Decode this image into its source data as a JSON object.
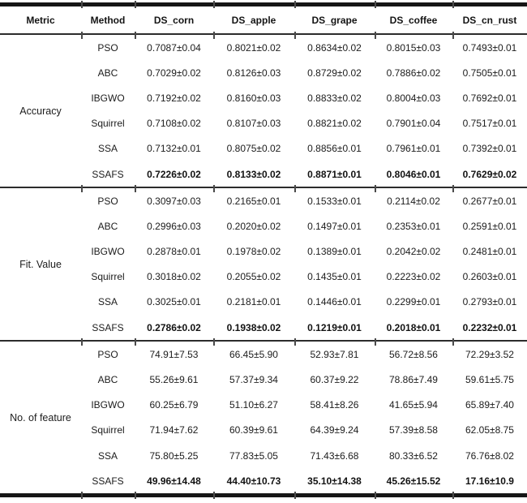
{
  "table": {
    "columns": [
      "Metric",
      "Method",
      "DS_corn",
      "DS_apple",
      "DS_grape",
      "DS_coffee",
      "DS_cn_rust"
    ],
    "sections": [
      {
        "metric": "Accuracy",
        "rows": [
          {
            "method": "PSO",
            "bold": false,
            "values": [
              "0.7087±0.04",
              "0.8021±0.02",
              "0.8634±0.02",
              "0.8015±0.03",
              "0.7493±0.01"
            ]
          },
          {
            "method": "ABC",
            "bold": false,
            "values": [
              "0.7029±0.02",
              "0.8126±0.03",
              "0.8729±0.02",
              "0.7886±0.02",
              "0.7505±0.01"
            ]
          },
          {
            "method": "IBGWO",
            "bold": false,
            "values": [
              "0.7192±0.02",
              "0.8160±0.03",
              "0.8833±0.02",
              "0.8004±0.03",
              "0.7692±0.01"
            ]
          },
          {
            "method": "Squirrel",
            "bold": false,
            "values": [
              "0.7108±0.02",
              "0.8107±0.03",
              "0.8821±0.02",
              "0.7901±0.04",
              "0.7517±0.01"
            ]
          },
          {
            "method": "SSA",
            "bold": false,
            "values": [
              "0.7132±0.01",
              "0.8075±0.02",
              "0.8856±0.01",
              "0.7961±0.01",
              "0.7392±0.01"
            ]
          },
          {
            "method": "SSAFS",
            "bold": true,
            "values": [
              "0.7226±0.02",
              "0.8133±0.02",
              "0.8871±0.01",
              "0.8046±0.01",
              "0.7629±0.02"
            ]
          }
        ]
      },
      {
        "metric": "Fit. Value",
        "rows": [
          {
            "method": "PSO",
            "bold": false,
            "values": [
              "0.3097±0.03",
              "0.2165±0.01",
              "0.1533±0.01",
              "0.2114±0.02",
              "0.2677±0.01"
            ]
          },
          {
            "method": "ABC",
            "bold": false,
            "values": [
              "0.2996±0.03",
              "0.2020±0.02",
              "0.1497±0.01",
              "0.2353±0.01",
              "0.2591±0.01"
            ]
          },
          {
            "method": "IBGWO",
            "bold": false,
            "values": [
              "0.2878±0.01",
              "0.1978±0.02",
              "0.1389±0.01",
              "0.2042±0.02",
              "0.2481±0.01"
            ]
          },
          {
            "method": "Squirrel",
            "bold": false,
            "values": [
              "0.3018±0.02",
              "0.2055±0.02",
              "0.1435±0.01",
              "0.2223±0.02",
              "0.2603±0.01"
            ]
          },
          {
            "method": "SSA",
            "bold": false,
            "values": [
              "0.3025±0.01",
              "0.2181±0.01",
              "0.1446±0.01",
              "0.2299±0.01",
              "0.2793±0.01"
            ]
          },
          {
            "method": "SSAFS",
            "bold": true,
            "values": [
              "0.2786±0.02",
              "0.1938±0.02",
              "0.1219±0.01",
              "0.2018±0.01",
              "0.2232±0.01"
            ]
          }
        ]
      },
      {
        "metric": "No. of feature",
        "rows": [
          {
            "method": "PSO",
            "bold": false,
            "values": [
              "74.91±7.53",
              "66.45±5.90",
              "52.93±7.81",
              "56.72±8.56",
              "72.29±3.52"
            ]
          },
          {
            "method": "ABC",
            "bold": false,
            "values": [
              "55.26±9.61",
              "57.37±9.34",
              "60.37±9.22",
              "78.86±7.49",
              "59.61±5.75"
            ]
          },
          {
            "method": "IBGWO",
            "bold": false,
            "values": [
              "60.25±6.79",
              "51.10±6.27",
              "58.41±8.26",
              "41.65±5.94",
              "65.89±7.40"
            ]
          },
          {
            "method": "Squirrel",
            "bold": false,
            "values": [
              "71.94±7.62",
              "60.39±9.61",
              "64.39±9.24",
              "57.39±8.58",
              "62.05±8.75"
            ]
          },
          {
            "method": "SSA",
            "bold": false,
            "values": [
              "75.80±5.25",
              "77.83±5.05",
              "71.43±6.68",
              "80.33±6.52",
              "76.76±8.02"
            ]
          },
          {
            "method": "SSAFS",
            "bold": true,
            "values": [
              "49.96±14.48",
              "44.40±10.73",
              "35.10±14.38",
              "45.26±15.52",
              "17.16±10.9"
            ]
          }
        ]
      }
    ]
  },
  "colors": {
    "background": "#ffffff",
    "text": "#1c1c1c",
    "thick_rule": "#161616",
    "thin_rule": "#2c2c2c",
    "tick": "#4a4a4a"
  }
}
